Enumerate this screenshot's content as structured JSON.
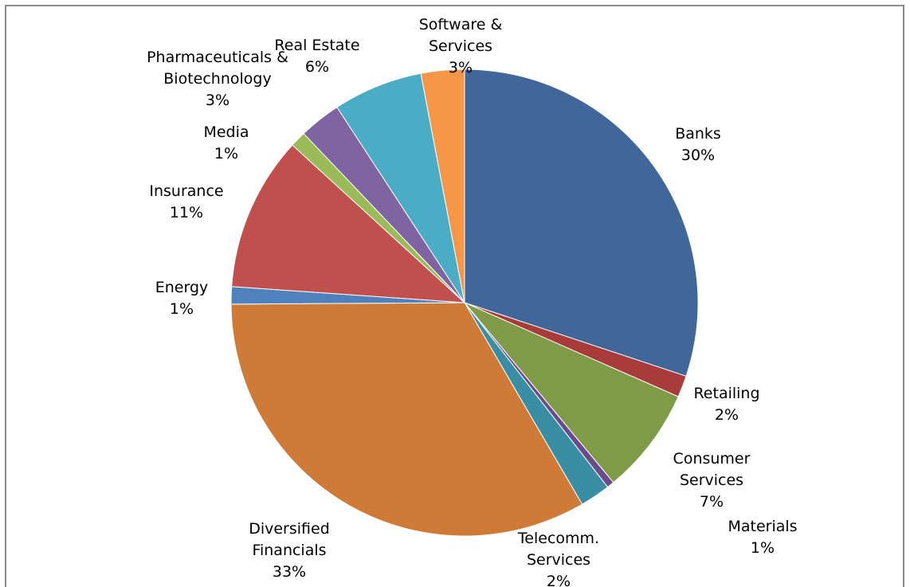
{
  "chart_data": {
    "type": "pie",
    "title": "",
    "slices": [
      {
        "label": "Banks",
        "line1": "Banks",
        "line2": "",
        "pct_label": "30%",
        "value": 30.1,
        "color": "#41679a"
      },
      {
        "label": "Retailing",
        "line1": "Retailing",
        "line2": "",
        "pct_label": "2%",
        "value": 1.5,
        "color": "#a83c3a"
      },
      {
        "label": "Consumer Services",
        "line1": "Consumer",
        "line2": "Services",
        "pct_label": "7%",
        "value": 7.4,
        "color": "#7f9b48"
      },
      {
        "label": "Materials",
        "line1": "Materials",
        "line2": "",
        "pct_label": "1%",
        "value": 0.5,
        "color": "#6a4c8c"
      },
      {
        "label": "Telecomm. Services",
        "line1": "Telecomm.",
        "line2": "Services",
        "pct_label": "2%",
        "value": 2.1,
        "color": "#3a8ea4"
      },
      {
        "label": "Diversified Financials",
        "line1": "Diversified",
        "line2": "Financials",
        "pct_label": "33%",
        "value": 33.3,
        "color": "#cf7b37"
      },
      {
        "label": "Energy",
        "line1": "Energy",
        "line2": "",
        "pct_label": "1%",
        "value": 1.2,
        "color": "#4f81bd"
      },
      {
        "label": "Insurance",
        "line1": "Insurance",
        "line2": "",
        "pct_label": "11%",
        "value": 10.7,
        "color": "#c0504d"
      },
      {
        "label": "Media",
        "line1": "Media",
        "line2": "",
        "pct_label": "1%",
        "value": 1.1,
        "color": "#9bbb59"
      },
      {
        "label": "Pharmaceuticals & Biotechnology",
        "line1": "Pharmaceuticals &",
        "line2": "Biotechnology",
        "pct_label": "3%",
        "value": 2.9,
        "color": "#8064a2"
      },
      {
        "label": "Real Estate",
        "line1": "Real Estate",
        "line2": "",
        "pct_label": "6%",
        "value": 6.2,
        "color": "#4bacc6"
      },
      {
        "label": "Software & Services",
        "line1": "Software &",
        "line2": "Services",
        "pct_label": "3%",
        "value": 3.0,
        "color": "#f79646"
      }
    ],
    "start_angle": "12 o'clock",
    "direction": "clockwise",
    "legend": "none"
  }
}
